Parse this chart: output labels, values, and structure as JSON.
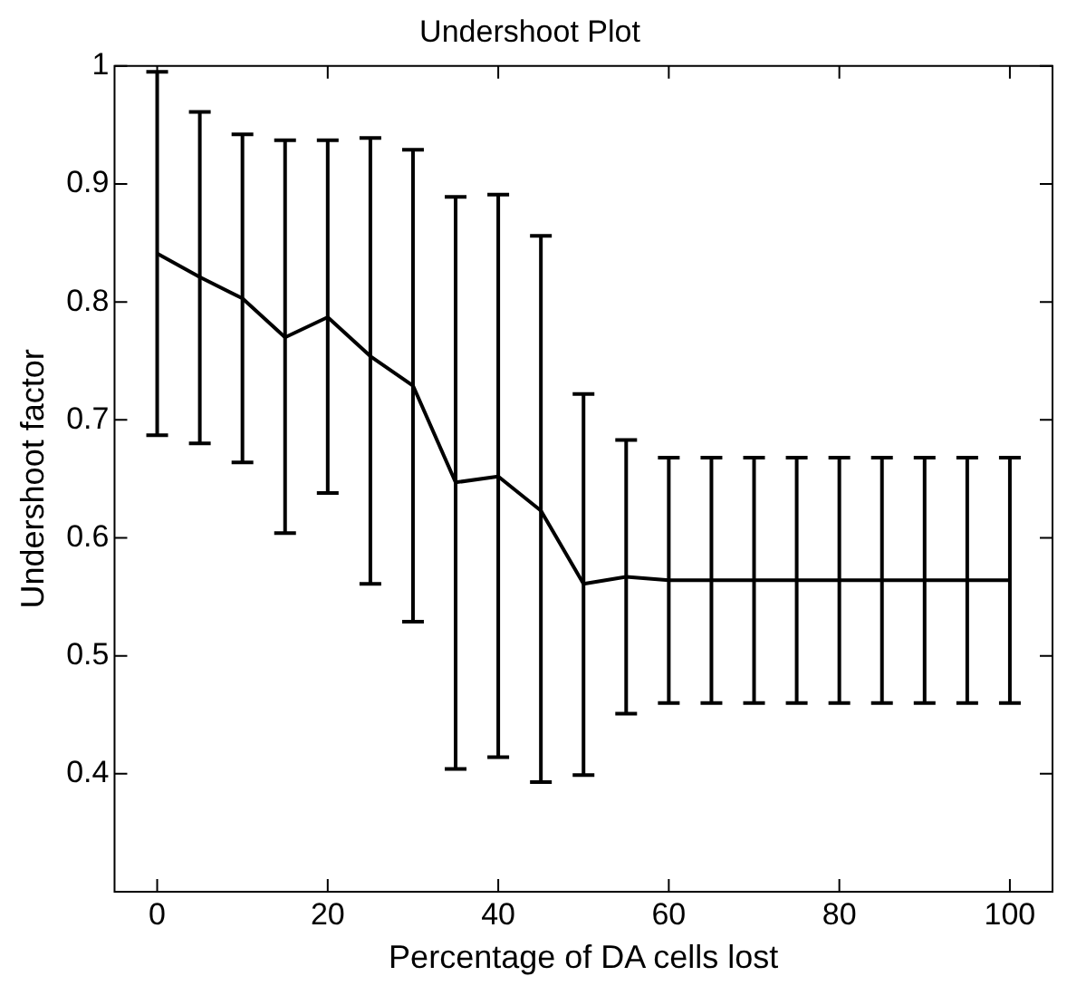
{
  "chart_data": {
    "type": "line",
    "title": "Undershoot Plot",
    "xlabel": "Percentage of DA cells lost",
    "ylabel": "Undershoot factor",
    "x": [
      0,
      5,
      10,
      15,
      20,
      25,
      30,
      35,
      40,
      45,
      50,
      55,
      60,
      65,
      70,
      75,
      80,
      85,
      90,
      95,
      100
    ],
    "series": [
      {
        "color": "#000000",
        "values": [
          0.841,
          0.821,
          0.803,
          0.77,
          0.787,
          0.754,
          0.729,
          0.647,
          0.652,
          0.623,
          0.561,
          0.567,
          0.564,
          0.564,
          0.564,
          0.564,
          0.564,
          0.564,
          0.564,
          0.564,
          0.564
        ],
        "errors": [
          [
            0.687,
            0.995
          ],
          [
            0.68,
            0.961
          ],
          [
            0.664,
            0.942
          ],
          [
            0.604,
            0.937
          ],
          [
            0.638,
            0.937
          ],
          [
            0.561,
            0.939
          ],
          [
            0.529,
            0.929
          ],
          [
            0.404,
            0.889
          ],
          [
            0.414,
            0.891
          ],
          [
            0.393,
            0.856
          ],
          [
            0.399,
            0.722
          ],
          [
            0.451,
            0.683
          ],
          [
            0.46,
            0.668
          ],
          [
            0.46,
            0.668
          ],
          [
            0.46,
            0.668
          ],
          [
            0.46,
            0.668
          ],
          [
            0.46,
            0.668
          ],
          [
            0.46,
            0.668
          ],
          [
            0.46,
            0.668
          ],
          [
            0.46,
            0.668
          ],
          [
            0.46,
            0.668
          ]
        ]
      }
    ],
    "xlim": [
      -5,
      105
    ],
    "xticks": [
      0,
      20,
      40,
      60,
      80,
      100
    ],
    "ylim": [
      0.3,
      1
    ],
    "yticks": [
      0.4,
      0.5,
      0.6,
      0.7,
      0.8,
      0.9,
      1
    ],
    "grid": false,
    "legend": false,
    "marker": "none",
    "line_style": "solid"
  }
}
